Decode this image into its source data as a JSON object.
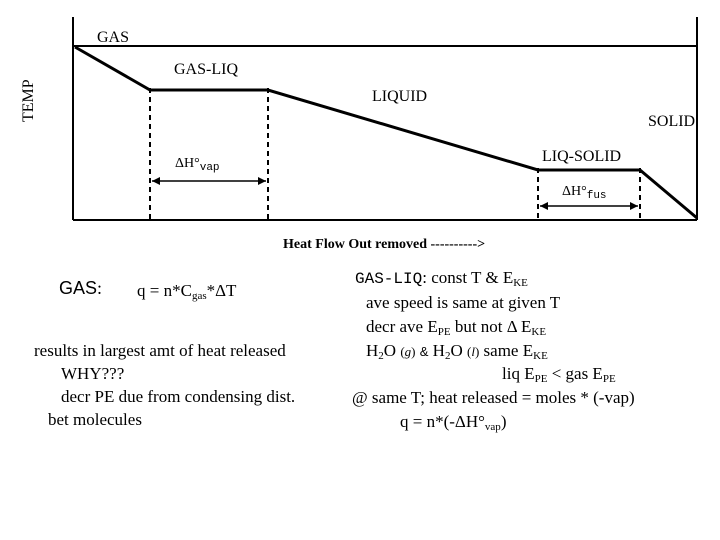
{
  "diagram": {
    "y_axis_label": "TEMP",
    "phase_labels": {
      "gas": "GAS",
      "gas_liq": "GAS-LIQ",
      "liquid": "LIQUID",
      "solid": "SOLID",
      "liq_solid": "LIQ-SOLID"
    },
    "dh_vap": {
      "delta": "ΔH°",
      "sub": "vap"
    },
    "dh_fus": {
      "delta": "ΔH°",
      "sub": "fus"
    },
    "x_caption": "Heat Flow Out removed ---------->"
  },
  "left_notes": {
    "heading": "GAS",
    "heading_colon": ":",
    "formula_prefix": "q = n*C",
    "formula_sub": "gas",
    "formula_suffix": "*ΔT",
    "line1": "results in largest amt of heat released",
    "line2": "WHY???",
    "line3": "decr PE due from condensing dist.",
    "line4": "bet molecules"
  },
  "right_notes": {
    "heading": "GAS-LIQ",
    "line1_a": ":  const T & E",
    "line1_sub": "KE",
    "line2": "ave speed is same at given T",
    "line3_a": "decr ave E",
    "line3_sub1": "PE",
    "line3_b": " but not Δ E",
    "line3_sub2": "KE",
    "line4_h": "H",
    "line4_2": "2",
    "line4_o": "O",
    "line4_g": "(g)",
    "line4_amp": "&",
    "line4_h2": "H",
    "line4_22": "2",
    "line4_o2": "O",
    "line4_l": "(l)",
    "line4_same": "same E",
    "line4_sub": "KE",
    "line5_a": "liq E",
    "line5_sub1": "PE",
    "line5_b": " <  gas E",
    "line5_sub2": "PE",
    "line6": "@ same T;  heat released = moles * (-vap)",
    "line7_a": "q = n*(-ΔH°",
    "line7_sub": "vap",
    "line7_b": ")"
  }
}
